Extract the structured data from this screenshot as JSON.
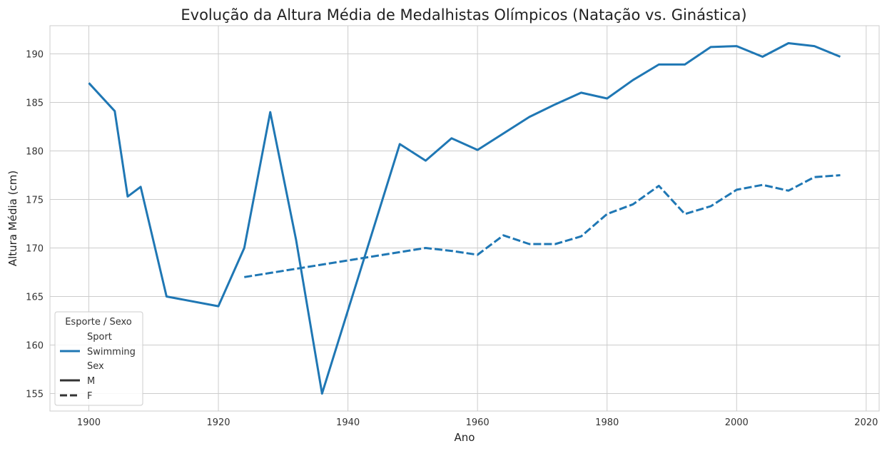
{
  "chart_data": {
    "type": "line",
    "title": "Evolução da Altura Média de Medalhistas Olímpicos (Natação vs. Ginástica)",
    "xlabel": "Ano",
    "ylabel": "Altura Média (cm)",
    "xlim": [
      1894,
      2022
    ],
    "ylim": [
      153.2,
      192.9
    ],
    "x_ticks": [
      1900,
      1920,
      1940,
      1960,
      1980,
      2000,
      2020
    ],
    "y_ticks": [
      155,
      160,
      165,
      170,
      175,
      180,
      185,
      190
    ],
    "grid": true,
    "color": "#1f77b4",
    "legend": {
      "title": "Esporte / Sexo",
      "placement": "lower-left",
      "sport_header": "Sport",
      "sport_entries": [
        "Swimming"
      ],
      "sex_header": "Sex",
      "sex_entries": [
        "M",
        "F"
      ]
    },
    "series": [
      {
        "name": "Swimming, M",
        "sport": "Swimming",
        "sex": "M",
        "style": "solid",
        "x": [
          1900,
          1904,
          1906,
          1908,
          1912,
          1920,
          1924,
          1928,
          1932,
          1936,
          1948,
          1952,
          1956,
          1960,
          1964,
          1968,
          1972,
          1976,
          1980,
          1984,
          1988,
          1992,
          1996,
          2000,
          2004,
          2008,
          2012,
          2016
        ],
        "values": [
          187.0,
          184.1,
          175.3,
          176.3,
          165.0,
          164.0,
          170.0,
          184.0,
          170.8,
          155.0,
          180.7,
          179.0,
          181.3,
          180.1,
          181.8,
          183.5,
          184.8,
          186.0,
          185.4,
          187.3,
          188.9,
          188.9,
          190.7,
          190.8,
          189.7,
          191.1,
          190.8,
          189.7
        ]
      },
      {
        "name": "Swimming, F",
        "sport": "Swimming",
        "sex": "F",
        "style": "dashed",
        "x": [
          1924,
          1952,
          1956,
          1960,
          1964,
          1968,
          1972,
          1976,
          1980,
          1984,
          1988,
          1992,
          1996,
          2000,
          2004,
          2008,
          2012,
          2016
        ],
        "values": [
          167.0,
          170.0,
          169.7,
          169.3,
          171.3,
          170.4,
          170.4,
          171.2,
          173.5,
          174.5,
          176.4,
          173.5,
          174.3,
          176.0,
          176.5,
          175.9,
          177.3,
          177.5
        ]
      }
    ]
  }
}
